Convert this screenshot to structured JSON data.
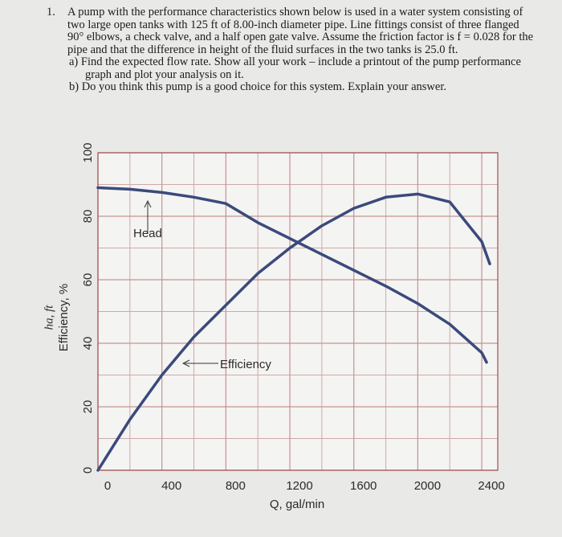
{
  "problem": {
    "number": "1.",
    "text": "A pump with the performance characteristics shown below is used in a water system consisting of two large open tanks with 125 ft of 8.00-inch diameter pipe. Line fittings consist of three flanged 90° elbows, a check valve, and a half open gate valve. Assume the friction factor is f = 0.028 for the pipe and that the difference in height of the fluid surfaces in the two tanks is 25.0 ft.",
    "parts": [
      "a) Find the expected flow rate. Show all your work – include a printout of the pump performance graph and plot your analysis on it.",
      "b) Do you think this pump is a good choice for this system. Explain your answer."
    ]
  },
  "chart_data": {
    "type": "line",
    "x_label": "Q, gal/min",
    "y_label": "ha, ft",
    "y_label_2": "Efficiency, %",
    "annotations": [
      "Head",
      "Efficiency"
    ],
    "xlim": [
      0,
      2500
    ],
    "ylim": [
      0,
      100
    ],
    "xticks": [
      0,
      400,
      800,
      1200,
      1600,
      2000,
      2400
    ],
    "xminorticks": [
      200,
      600,
      1000,
      1400,
      1800,
      2200
    ],
    "yticks": [
      0,
      20,
      40,
      60,
      80,
      100
    ],
    "yminorticks": [
      10,
      30,
      50,
      70,
      90
    ],
    "grid": true,
    "series": [
      {
        "name": "Head",
        "color": "#3b4a7c",
        "x": [
          0,
          200,
          400,
          600,
          800,
          1000,
          1200,
          1400,
          1600,
          1800,
          2000,
          2200,
          2400,
          2430
        ],
        "values": [
          89,
          88.5,
          87.5,
          86,
          84,
          78,
          73,
          68,
          63,
          58,
          52.5,
          46,
          37,
          34
        ]
      },
      {
        "name": "Efficiency",
        "color": "#3b4a7c",
        "x": [
          0,
          200,
          400,
          600,
          800,
          1000,
          1200,
          1400,
          1600,
          1800,
          2000,
          2200,
          2400,
          2450
        ],
        "values": [
          0,
          16,
          30,
          42,
          52,
          62,
          70,
          77,
          82.5,
          86,
          87,
          84.5,
          72,
          65
        ]
      }
    ]
  }
}
